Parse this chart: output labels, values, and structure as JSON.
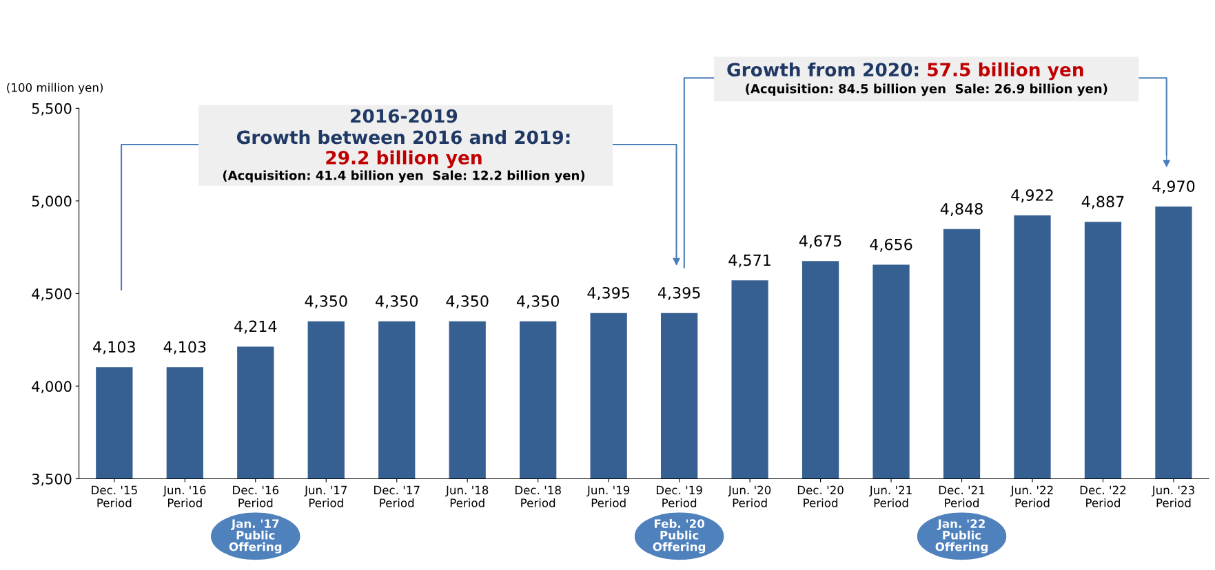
{
  "chart_data": {
    "type": "bar",
    "ylabel": "(100 million yen)",
    "categories": [
      "Dec. '15\nPeriod",
      "Jun. '16\nPeriod",
      "Dec. '16\nPeriod",
      "Jun. '17\nPeriod",
      "Dec. '17\nPeriod",
      "Jun. '18\nPeriod",
      "Dec. '18\nPeriod",
      "Jun. '19\nPeriod",
      "Dec. '19\nPeriod",
      "Jun. '20\nPeriod",
      "Dec. '20\nPeriod",
      "Jun. '21\nPeriod",
      "Dec. '21\nPeriod",
      "Jun. '22\nPeriod",
      "Dec. '22\nPeriod",
      "Jun. '23\nPeriod"
    ],
    "values": [
      4103,
      4103,
      4214,
      4350,
      4350,
      4350,
      4350,
      4395,
      4395,
      4571,
      4675,
      4656,
      4848,
      4922,
      4887,
      4970
    ],
    "color": "#376092",
    "ylim": [
      3500,
      5500
    ],
    "yticks": [
      {
        "value": 3500,
        "label": "3,500"
      },
      {
        "value": 4000,
        "label": "4,000"
      },
      {
        "value": 4500,
        "label": "4,500"
      },
      {
        "value": 5000,
        "label": "5,000"
      },
      {
        "value": 5500,
        "label": "5,500"
      }
    ],
    "value_labels": [
      "4,103",
      "4,103",
      "4,214",
      "4,350",
      "4,350",
      "4,350",
      "4,350",
      "4,395",
      "4,395",
      "4,571",
      "4,675",
      "4,656",
      "4,848",
      "4,922",
      "4,887",
      "4,970"
    ],
    "grid": false,
    "legend": false,
    "annotations": [
      "2016-2019",
      "Growth between 2016 and 2019:",
      "29.2 billion yen",
      "(Acquisition: 41.4 billion yen  Sale: 12.2 billion yen)",
      "Growth from 2020: ",
      "57.5 billion yen",
      "(Acquisition: 84.5 billion yen  Sale: 26.9 billion yen)",
      "Jan. '17\nPublic\nOffering",
      "Feb. '20\nPublic\nOffering",
      "Jan. '22\nPublic\nOffering"
    ]
  }
}
